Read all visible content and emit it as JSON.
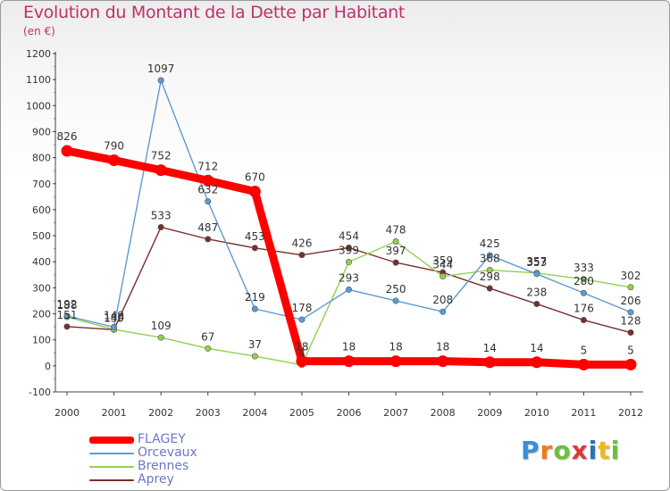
{
  "title": "Evolution du Montant de la Dette par Habitant",
  "subtitle": "(en €)",
  "logo": {
    "text": "Proxiti",
    "colors": [
      "#3a8fd8",
      "#f07a1e",
      "#6cbf3c",
      "#d83a3a",
      "#2f6fb8",
      "#f0b81e",
      "#6cbf3c"
    ]
  },
  "chart_data": {
    "type": "line",
    "x": [
      "2000",
      "2001",
      "2002",
      "2003",
      "2004",
      "2005",
      "2006",
      "2007",
      "2008",
      "2009",
      "2010",
      "2011",
      "2012"
    ],
    "ylim": [
      -100,
      1200
    ],
    "yticks": [
      -100,
      0,
      100,
      200,
      300,
      400,
      500,
      600,
      700,
      800,
      900,
      1000,
      1100,
      1200
    ],
    "grid": false,
    "legend": "bottom-left",
    "series": [
      {
        "name": "FLAGEY",
        "color": "#ff0000",
        "values": [
          826,
          790,
          752,
          712,
          670,
          18,
          18,
          18,
          18,
          14,
          14,
          5,
          5
        ]
      },
      {
        "name": "Orcevaux",
        "color": "#5b9bd5",
        "values": [
          192,
          149,
          1097,
          632,
          219,
          178,
          293,
          250,
          208,
          425,
          353,
          280,
          206
        ]
      },
      {
        "name": "Brennes",
        "color": "#92d050",
        "values": [
          188,
          140,
          109,
          67,
          37,
          4,
          399,
          478,
          344,
          368,
          357,
          333,
          302
        ]
      },
      {
        "name": "Aprey",
        "color": "#7a2e2e",
        "values": [
          151,
          139,
          533,
          487,
          453,
          426,
          454,
          397,
          359,
          298,
          238,
          176,
          128
        ]
      }
    ],
    "data_labels": [
      {
        "series": 0,
        "labels": [
          "826",
          "790",
          "752",
          "712",
          "670",
          "18",
          "18",
          "18",
          "18",
          "14",
          "14",
          "5",
          "5"
        ]
      },
      {
        "series": 1,
        "labels": [
          "192",
          "149",
          "1097",
          "632",
          "219",
          "178",
          "293",
          "250",
          "208",
          "425",
          "353",
          "280",
          "206"
        ]
      },
      {
        "series": 2,
        "labels": [
          "188",
          "140",
          "109",
          "67",
          "37",
          "4",
          "399",
          "478",
          "344",
          "368",
          "357",
          "333",
          "302"
        ]
      },
      {
        "series": 3,
        "labels": [
          "151",
          "139",
          "533",
          "487",
          "453",
          "426",
          "454",
          "397",
          "359",
          "298",
          "238",
          "176",
          "128"
        ]
      }
    ]
  }
}
